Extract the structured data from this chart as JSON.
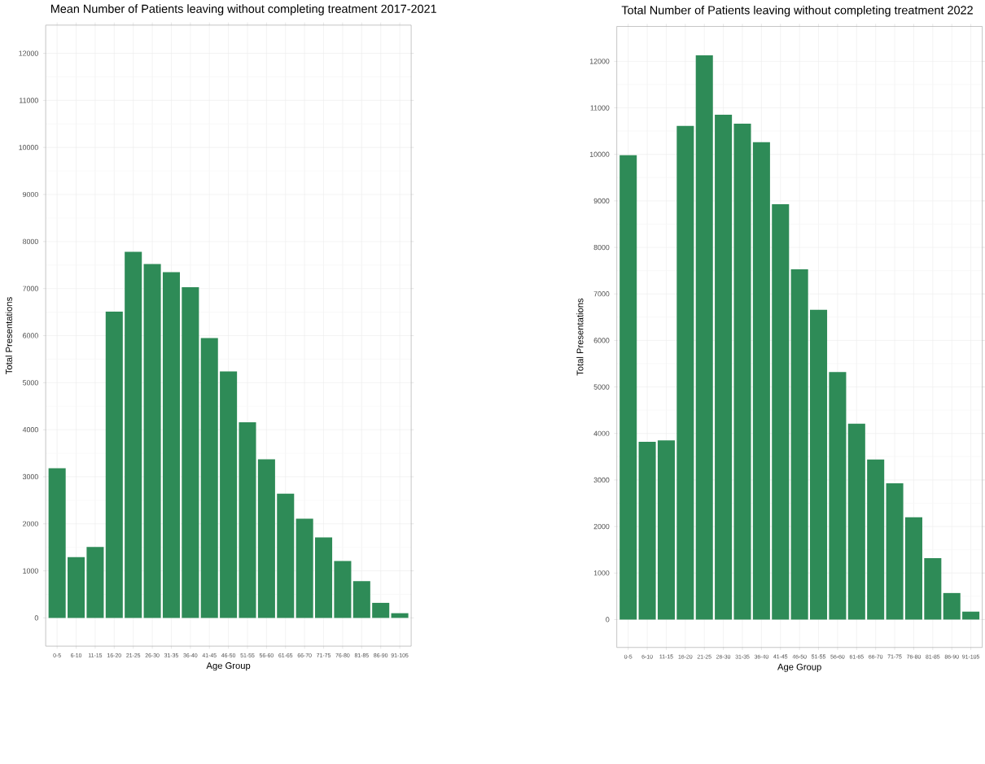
{
  "chart_data": [
    {
      "type": "bar",
      "title": "Mean Number of Patients leaving without completing treatment 2017-2021",
      "xlabel": "Age Group",
      "ylabel": "Total Presentations",
      "categories": [
        "0-5",
        "6-10",
        "11-15",
        "16-20",
        "21-25",
        "26-30",
        "31-35",
        "36-40",
        "41-45",
        "46-50",
        "51-55",
        "56-60",
        "61-65",
        "66-70",
        "71-75",
        "76-80",
        "81-85",
        "86-90",
        "91-105"
      ],
      "values": [
        3180,
        1290,
        1510,
        6510,
        7780,
        7520,
        7350,
        7030,
        5950,
        5240,
        4160,
        3370,
        2640,
        2110,
        1710,
        1210,
        780,
        320,
        100
      ],
      "color": "#2e8b57",
      "ylim": [
        -600,
        12600
      ],
      "yticks": [
        0,
        1000,
        2000,
        3000,
        4000,
        5000,
        6000,
        7000,
        8000,
        9000,
        10000,
        11000,
        12000
      ],
      "grid": true
    },
    {
      "type": "bar",
      "title": "Total Number of Patients leaving without completing treatment 2022",
      "xlabel": "Age Group",
      "ylabel": "Total Presentations",
      "categories": [
        "0-5",
        "6-10",
        "11-15",
        "16-20",
        "21-25",
        "26-30",
        "31-35",
        "36-40",
        "41-45",
        "46-50",
        "51-55",
        "56-60",
        "61-65",
        "66-70",
        "71-75",
        "76-80",
        "81-85",
        "86-90",
        "91-105"
      ],
      "values": [
        9980,
        3820,
        3850,
        10610,
        12130,
        10850,
        10660,
        10260,
        8930,
        7530,
        6660,
        5320,
        4210,
        3440,
        2930,
        2200,
        1320,
        570,
        170
      ],
      "color": "#2e8b57",
      "ylim": [
        -600,
        12750
      ],
      "yticks": [
        0,
        1000,
        2000,
        3000,
        4000,
        5000,
        6000,
        7000,
        8000,
        9000,
        10000,
        11000,
        12000
      ],
      "grid": true
    }
  ]
}
